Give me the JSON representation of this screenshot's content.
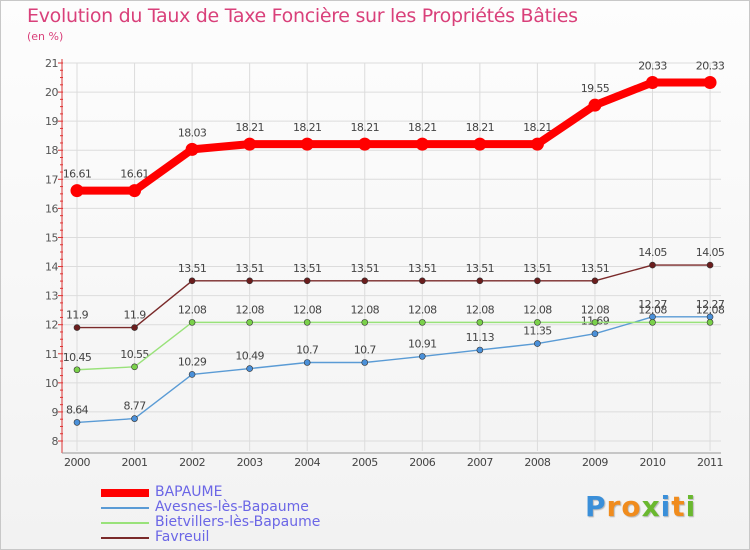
{
  "title": "Evolution du Taux de Taxe Foncière sur les Propriétés Bâties",
  "unit": "(en %)",
  "brand": {
    "text": "Proxiti",
    "letters": [
      "P",
      "r",
      "o",
      "x",
      "i",
      "t",
      "i"
    ],
    "colors": [
      "#3a8fd9",
      "#f08c1e",
      "#f08c1e",
      "#6ab82f",
      "#3a8fd9",
      "#f08c1e",
      "#6ab82f"
    ]
  },
  "chart_data": {
    "type": "line",
    "title": "Evolution du Taux de Taxe Foncière sur les Propriétés Bâties",
    "ylabel": "(en %)",
    "xlabel": "",
    "ylim": [
      8,
      21
    ],
    "yticks": [
      "8",
      "9",
      "10",
      "11",
      "12",
      "13",
      "14",
      "15",
      "16",
      "17",
      "18",
      "19",
      "20",
      "21"
    ],
    "categories": [
      "2000",
      "2001",
      "2002",
      "2003",
      "2004",
      "2005",
      "2006",
      "2007",
      "2008",
      "2009",
      "2010",
      "2011"
    ],
    "series": [
      {
        "name": "BAPAUME",
        "color": "#ff0000",
        "thick": true,
        "values": [
          16.61,
          16.61,
          18.03,
          18.21,
          18.21,
          18.21,
          18.21,
          18.21,
          18.21,
          19.55,
          20.33,
          20.33
        ],
        "labels": [
          "16.61",
          "16.61",
          "18.03",
          "18.21",
          "18.21",
          "18.21",
          "18.21",
          "18.21",
          "18.21",
          "19.55",
          "20.33",
          "20.33"
        ]
      },
      {
        "name": "Avesnes-lès-Bapaume",
        "color": "#5a9bd5",
        "dot": "#4a90d9",
        "thick": false,
        "values": [
          8.64,
          8.77,
          10.29,
          10.49,
          10.7,
          10.7,
          10.91,
          11.13,
          11.35,
          11.69,
          12.27,
          12.27
        ],
        "labels": [
          "8.64",
          "8.77",
          "10.29",
          "10.49",
          "10.7",
          "10.7",
          "10.91",
          "11.13",
          "11.35",
          "11.69",
          "12.27",
          "12.27"
        ]
      },
      {
        "name": "Bietvillers-lès-Bapaume",
        "color": "#99e27a",
        "dot": "#7ad14a",
        "thick": false,
        "values": [
          10.45,
          10.55,
          12.08,
          12.08,
          12.08,
          12.08,
          12.08,
          12.08,
          12.08,
          12.08,
          12.08,
          12.08
        ],
        "labels": [
          "10.45",
          "10.55",
          "12.08",
          "12.08",
          "12.08",
          "12.08",
          "12.08",
          "12.08",
          "12.08",
          "12.08",
          "12.08",
          "12.08"
        ]
      },
      {
        "name": "Favreuil",
        "color": "#7a2a2a",
        "dot": "#6b1d1d",
        "thick": false,
        "values": [
          11.9,
          11.9,
          13.51,
          13.51,
          13.51,
          13.51,
          13.51,
          13.51,
          13.51,
          13.51,
          14.05,
          14.05
        ],
        "labels": [
          "11.9",
          "11.9",
          "13.51",
          "13.51",
          "13.51",
          "13.51",
          "13.51",
          "13.51",
          "13.51",
          "13.51",
          "14.05",
          "14.05"
        ]
      }
    ]
  }
}
